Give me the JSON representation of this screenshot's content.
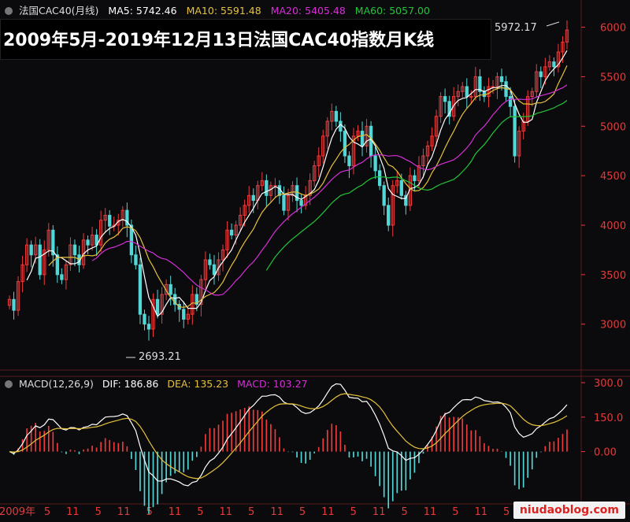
{
  "legend": {
    "symbol": "法国CAC40(月线)",
    "ma5": "MA5: 5742.46",
    "ma10": "MA10: 5591.48",
    "ma20": "MA20: 5405.48",
    "ma60": "MA60: 5057.00"
  },
  "colors": {
    "up": "#ef3b3b",
    "down": "#53d6d6",
    "ma5": "#ffffff",
    "ma10": "#e6c23a",
    "ma20": "#d52fd5",
    "ma60": "#22c53a",
    "axis_text": "#e33b3b",
    "grid": "#5a1a1a"
  },
  "title": "2009年5月-2019年12月13日法国CAC40指数月K线",
  "annotations": {
    "high": "5972.17",
    "low": "2693.21"
  },
  "macd_legend": {
    "name": "MACD(12,26,9)",
    "dif": "DIF: 186.86",
    "dea": "DEA: 135.23",
    "macd": "MACD: 103.27"
  },
  "watermark": "niudaoblog.com",
  "chart_data": [
    {
      "type": "candlestick",
      "y_ticks": [
        "3000",
        "3500",
        "4000",
        "4500",
        "5000",
        "5500",
        "6000"
      ],
      "ylim": [
        2600,
        6100
      ],
      "x_tick_labels": [
        "2009年",
        "5",
        "11",
        "5",
        "11",
        "5",
        "11",
        "5",
        "11",
        "5",
        "11",
        "5",
        "11",
        "5",
        "11",
        "5",
        "11",
        "5",
        "11",
        "5",
        "11",
        "5"
      ],
      "closes": [
        3250,
        3140,
        3430,
        3600,
        3800,
        3700,
        3800,
        3500,
        3750,
        3950,
        3700,
        3500,
        3450,
        3600,
        3800,
        3700,
        3600,
        3850,
        3800,
        3900,
        3800,
        4050,
        4100,
        3990,
        4000,
        4050,
        4150,
        4000,
        3700,
        3600,
        3100,
        3000,
        2950,
        3250,
        3100,
        3300,
        3400,
        3300,
        3200,
        3150,
        3050,
        3100,
        3300,
        3200,
        3450,
        3650,
        3600,
        3500,
        3650,
        3750,
        3950,
        3900,
        4000,
        4100,
        4200,
        4300,
        4250,
        4400,
        4450,
        4300,
        4400,
        4400,
        4300,
        4150,
        4300,
        4400,
        4250,
        4200,
        4300,
        4450,
        4600,
        4700,
        4900,
        5050,
        5150,
        5050,
        4950,
        4700,
        4600,
        4900,
        4950,
        4800,
        5000,
        4700,
        4550,
        4400,
        4200,
        4000,
        4400,
        4450,
        4300,
        4200,
        4500,
        4450,
        4600,
        4700,
        4800,
        4900,
        5100,
        5300,
        5250,
        5100,
        5300,
        5350,
        5400,
        5300,
        5300,
        5500,
        5350,
        5300,
        5400,
        5400,
        5500,
        5450,
        5300,
        5200,
        4700,
        4950,
        5050,
        5300,
        5350,
        5550,
        5500,
        5600,
        5650,
        5600,
        5750,
        5850,
        5972
      ],
      "ma60_start_index": 59
    },
    {
      "type": "macd",
      "y_ticks": [
        "300.0",
        "150.0",
        "0.00"
      ],
      "ylim": [
        -200,
        300
      ],
      "dif_last": 186.86,
      "dea_last": 135.23,
      "macd_last": 103.27
    }
  ]
}
